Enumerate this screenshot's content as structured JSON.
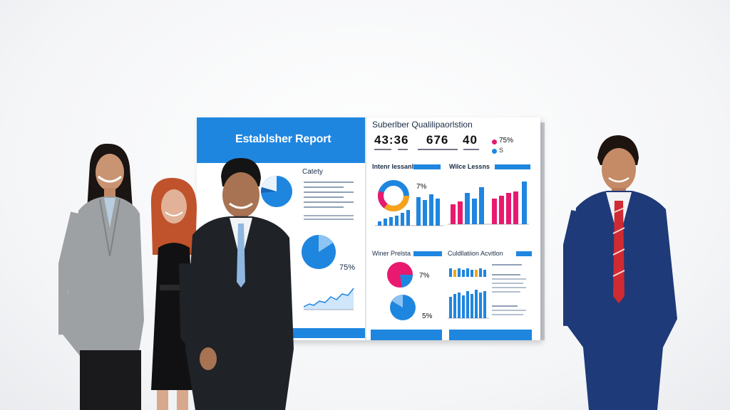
{
  "board": {
    "header_title": "Establsher Report",
    "category_title": "Catety",
    "left_percent": "75%",
    "right_title": "Suberlber Qualilipaorlstion",
    "kpis": [
      "43:36",
      "676",
      "40"
    ],
    "kpi_percent": "75%",
    "kpi_secondary": "S",
    "section_titles": [
      "Intenr lessanl",
      "Wilce Lessns",
      "Winer Prelsta",
      "Culdllatiion Acvitlon"
    ],
    "pct_labels": [
      "7%",
      "7%",
      "5%"
    ]
  },
  "colors": {
    "accent": "#1f86e0",
    "pink": "#e8196e",
    "orange": "#f7a21b"
  },
  "scene": {
    "description_people": 4
  }
}
